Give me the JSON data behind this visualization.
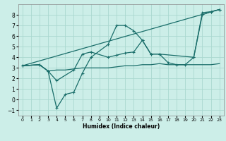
{
  "xlabel": "Humidex (Indice chaleur)",
  "bg_color": "#cceee8",
  "grid_color": "#aad8d0",
  "line_color": "#1a6e6a",
  "xlim": [
    -0.5,
    23.5
  ],
  "ylim": [
    -1.5,
    9.0
  ],
  "xticks": [
    0,
    1,
    2,
    3,
    4,
    5,
    6,
    7,
    8,
    9,
    10,
    11,
    12,
    13,
    14,
    15,
    16,
    17,
    18,
    19,
    20,
    21,
    22,
    23
  ],
  "yticks": [
    -1,
    0,
    1,
    2,
    3,
    4,
    5,
    6,
    7,
    8
  ],
  "lines": [
    {
      "x": [
        0,
        2,
        3,
        4,
        5,
        6,
        7,
        8,
        10,
        11,
        12,
        13,
        14,
        15,
        16,
        20,
        21,
        22,
        23
      ],
      "y": [
        3.2,
        3.3,
        2.7,
        -0.8,
        0.5,
        0.7,
        2.5,
        4.0,
        5.2,
        7.0,
        7.0,
        6.5,
        5.6,
        4.3,
        4.3,
        4.0,
        8.2,
        8.3,
        8.5
      ],
      "marker": true
    },
    {
      "x": [
        0,
        2,
        3,
        4,
        6,
        7,
        8,
        10,
        11,
        12,
        13,
        14,
        15,
        16,
        17,
        18,
        19,
        20,
        21,
        22,
        23
      ],
      "y": [
        3.2,
        3.3,
        2.7,
        1.8,
        2.8,
        4.3,
        4.5,
        4.0,
        4.2,
        4.4,
        4.5,
        5.6,
        4.3,
        4.3,
        3.5,
        3.3,
        3.3,
        4.0,
        8.0,
        8.3,
        8.5
      ],
      "marker": true
    },
    {
      "x": [
        0,
        2,
        3,
        4,
        5,
        6,
        7,
        8,
        10,
        11,
        12,
        13,
        14,
        15,
        16,
        17,
        18,
        19,
        20,
        21,
        22,
        23
      ],
      "y": [
        3.2,
        3.3,
        2.7,
        2.8,
        2.8,
        2.9,
        3.0,
        3.0,
        3.0,
        3.1,
        3.2,
        3.2,
        3.3,
        3.3,
        3.4,
        3.3,
        3.3,
        3.3,
        3.3,
        3.3,
        3.3,
        3.4
      ],
      "marker": false
    },
    {
      "x": [
        0,
        23
      ],
      "y": [
        3.2,
        8.5
      ],
      "marker": false
    }
  ]
}
